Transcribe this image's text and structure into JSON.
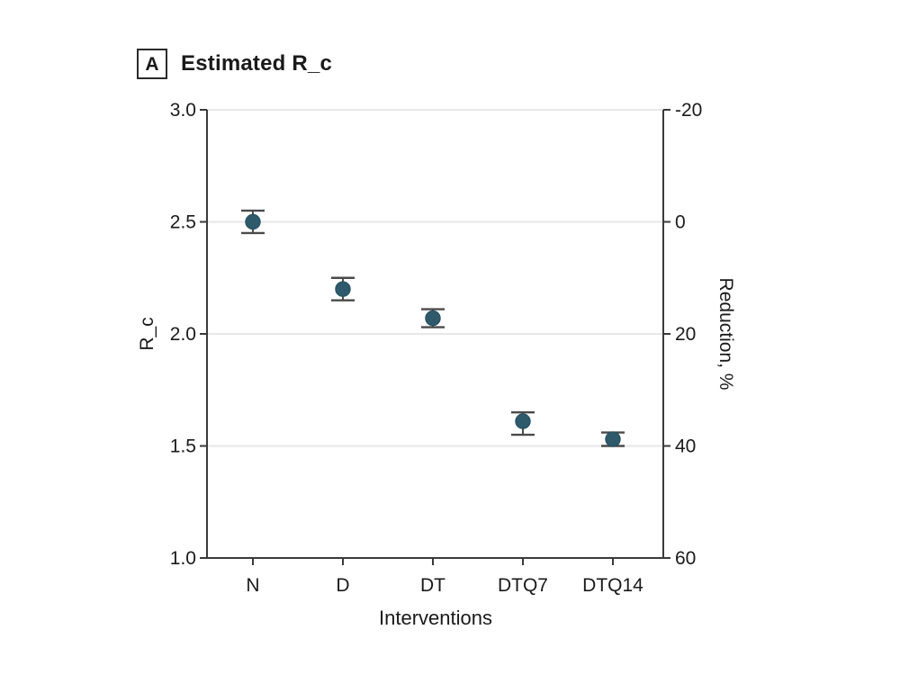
{
  "colors": {
    "background": "#ffffff",
    "text": "#1a1a1a",
    "axis": "#3a3a3a",
    "grid": "#e7e7e7",
    "marker": "#2e5a6b",
    "marker_edge": "#24505f",
    "error_bar": "#4a4a4a"
  },
  "chart_data": {
    "type": "scatter",
    "panel_label": "A",
    "title": "Estimated R_c",
    "xlabel": "Interventions",
    "ylabel_left": "R_c",
    "ylabel_right": "Reduction, %",
    "categories": [
      "N",
      "D",
      "DT",
      "DTQ7",
      "DTQ14"
    ],
    "series": [
      {
        "name": "Estimated R_c",
        "values": [
          2.5,
          2.2,
          2.07,
          1.61,
          1.53
        ],
        "ci_low": [
          2.45,
          2.15,
          2.03,
          1.55,
          1.5
        ],
        "ci_high": [
          2.55,
          2.25,
          2.11,
          1.65,
          1.56
        ]
      }
    ],
    "ylim_left": [
      1.0,
      3.0
    ],
    "left_ticks": [
      {
        "label": "3.0",
        "value": 3.0
      },
      {
        "label": "2.5",
        "value": 2.5
      },
      {
        "label": "2.0",
        "value": 2.0
      },
      {
        "label": "1.5",
        "value": 1.5
      },
      {
        "label": "1.0",
        "value": 1.0
      }
    ],
    "right_ticks": [
      {
        "label": "-20",
        "value": 3.0
      },
      {
        "label": "0",
        "value": 2.5
      },
      {
        "label": "20",
        "value": 2.0
      },
      {
        "label": "40",
        "value": 1.5
      },
      {
        "label": "60",
        "value": 1.0
      }
    ],
    "ylim_right": [
      -20,
      60
    ],
    "grid": true,
    "legend": "none"
  }
}
